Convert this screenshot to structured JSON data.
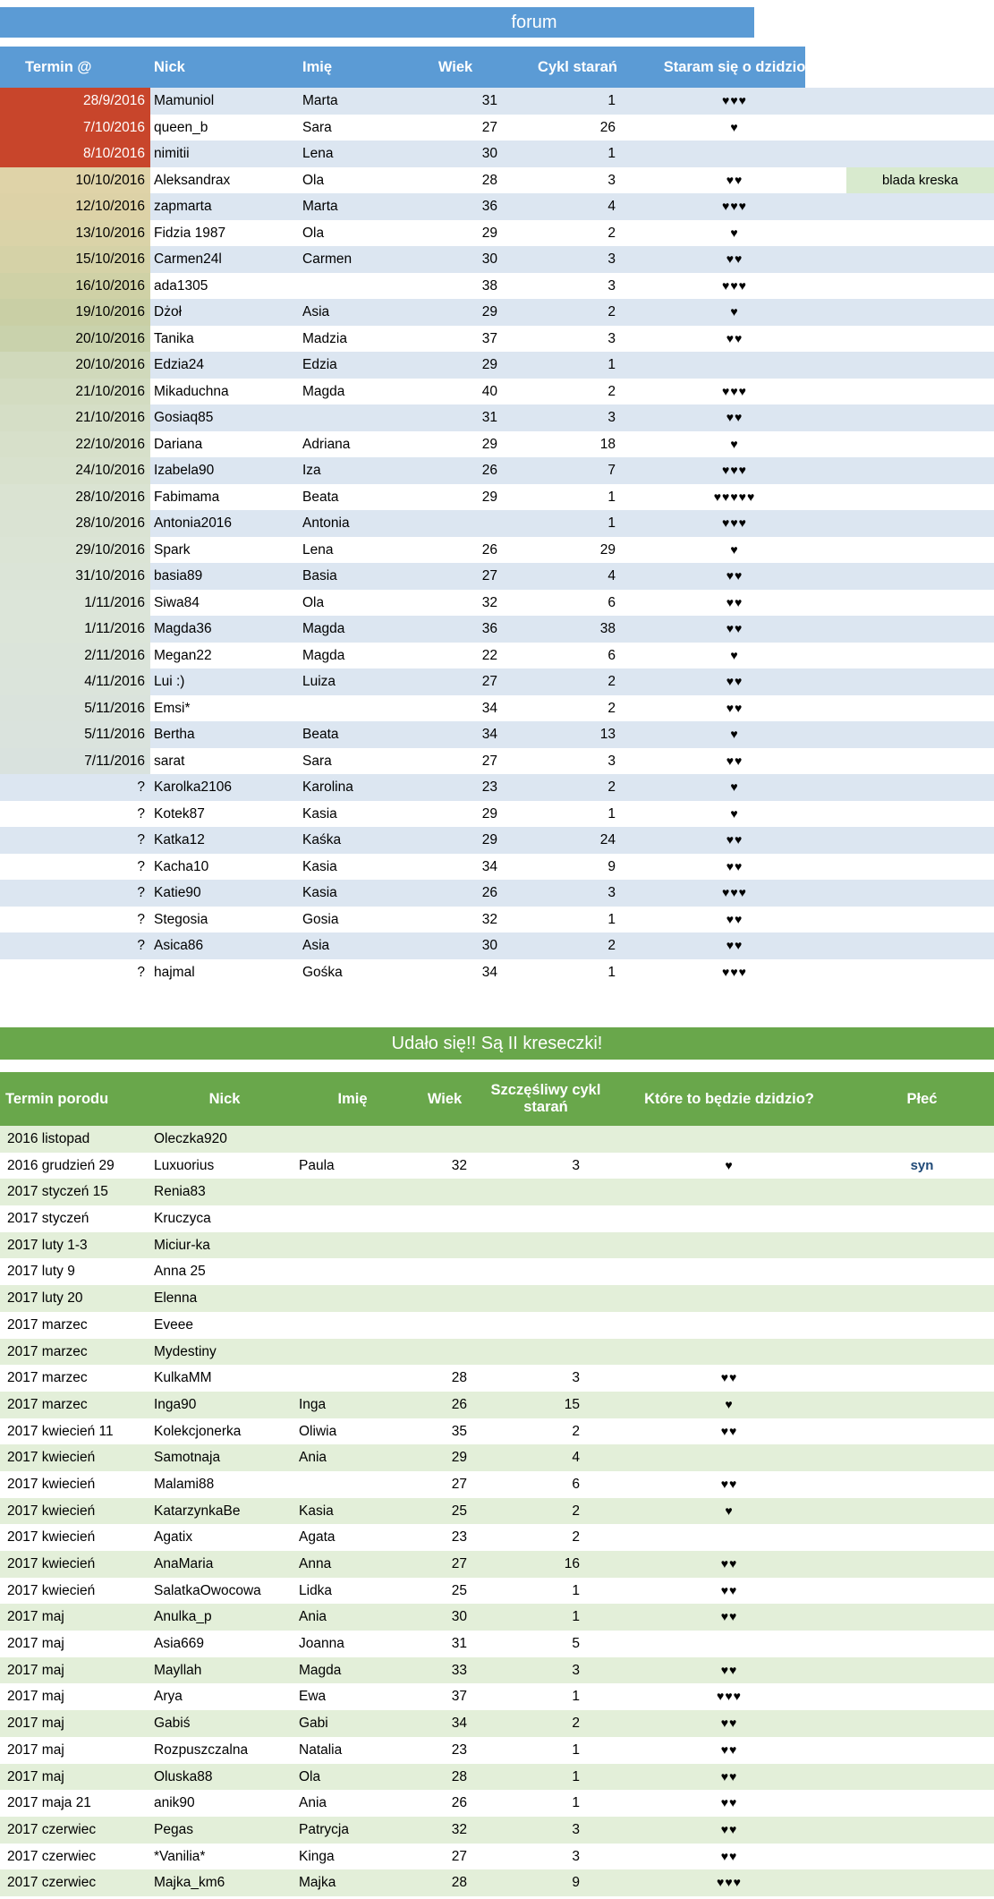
{
  "title": "forum",
  "banner": "Udało się!! Są II kreseczki!",
  "colors": {
    "header_blue": "#5B9BD5",
    "stripe_blue": "#DCE6F1",
    "banner_green": "#69A74B",
    "stripe_green": "#E3EFD9",
    "note_green": "#D8EACE",
    "overdue_red": "#C8452B",
    "syn_navy": "#1F4977"
  },
  "table1": {
    "headers": {
      "termin": "Termin @",
      "nick": "Nick",
      "imie": "Imię",
      "wiek": "Wiek",
      "cykl": "Cykl starań",
      "staram": "Staram się o dzidzio"
    },
    "rows": [
      {
        "date": "28/9/2016",
        "nick": "Mamuniol",
        "imie": "Marta",
        "wiek": "31",
        "cykl": "1",
        "hearts": 3,
        "note": "",
        "date_bg": "#C8452B",
        "date_fg": "#FFFFFF"
      },
      {
        "date": "7/10/2016",
        "nick": "queen_b",
        "imie": "Sara",
        "wiek": "27",
        "cykl": "26",
        "hearts": 1,
        "note": "",
        "date_bg": "#C8452B",
        "date_fg": "#FFFFFF"
      },
      {
        "date": "8/10/2016",
        "nick": "nimitii",
        "imie": "Lena",
        "wiek": "30",
        "cykl": "1",
        "hearts": 0,
        "note": "",
        "date_bg": "#C8452B",
        "date_fg": "#FFFFFF"
      },
      {
        "date": "10/10/2016",
        "nick": "Aleksandrax",
        "imie": "Ola",
        "wiek": "28",
        "cykl": "3",
        "hearts": 2,
        "note": "blada kreska",
        "date_bg": "#DFD3A8"
      },
      {
        "date": "12/10/2016",
        "nick": "zapmarta",
        "imie": "Marta",
        "wiek": "36",
        "cykl": "4",
        "hearts": 3,
        "note": "",
        "date_bg": "#DDD2A7"
      },
      {
        "date": "13/10/2016",
        "nick": "Fidzia 1987",
        "imie": "Ola",
        "wiek": "29",
        "cykl": "2",
        "hearts": 1,
        "note": "",
        "date_bg": "#DAD3A8"
      },
      {
        "date": "15/10/2016",
        "nick": "Carmen24l",
        "imie": "Carmen",
        "wiek": "30",
        "cykl": "3",
        "hearts": 2,
        "note": "",
        "date_bg": "#D5D2A7"
      },
      {
        "date": "16/10/2016",
        "nick": "ada1305",
        "imie": "",
        "wiek": "38",
        "cykl": "3",
        "hearts": 3,
        "note": "",
        "date_bg": "#CFD1A6"
      },
      {
        "date": "19/10/2016",
        "nick": "Dżoł",
        "imie": "Asia",
        "wiek": "29",
        "cykl": "2",
        "hearts": 1,
        "note": "",
        "date_bg": "#C9CFA5"
      },
      {
        "date": "20/10/2016",
        "nick": "Tanika",
        "imie": "Madzia",
        "wiek": "37",
        "cykl": "3",
        "hearts": 2,
        "note": "",
        "date_bg": "#C9D2AC"
      },
      {
        "date": "20/10/2016",
        "nick": "Edzia24",
        "imie": "Edzia",
        "wiek": "29",
        "cykl": "1",
        "hearts": 0,
        "note": "",
        "date_bg": "#D0D9BB"
      },
      {
        "date": "21/10/2016",
        "nick": "Mikaduchna",
        "imie": "Magda",
        "wiek": "40",
        "cykl": "2",
        "hearts": 3,
        "note": "",
        "date_bg": "#D3DCC1"
      },
      {
        "date": "21/10/2016",
        "nick": "Gosiaq85",
        "imie": "",
        "wiek": "31",
        "cykl": "3",
        "hearts": 2,
        "note": "",
        "date_bg": "#D5DEC6"
      },
      {
        "date": "22/10/2016",
        "nick": "Dariana",
        "imie": "Adriana",
        "wiek": "29",
        "cykl": "18",
        "hearts": 1,
        "note": "",
        "date_bg": "#D7E0CA"
      },
      {
        "date": "24/10/2016",
        "nick": "Izabela90",
        "imie": "Iza",
        "wiek": "26",
        "cykl": "7",
        "hearts": 3,
        "note": "",
        "date_bg": "#D8E1CD"
      },
      {
        "date": "28/10/2016",
        "nick": "Fabimama",
        "imie": "Beata",
        "wiek": "29",
        "cykl": "1",
        "hearts": 5,
        "note": "",
        "date_bg": "#DAE3D2"
      },
      {
        "date": "28/10/2016",
        "nick": "Antonia2016",
        "imie": "Antonia",
        "wiek": "",
        "cykl": "1",
        "hearts": 3,
        "note": "",
        "date_bg": "#DAE3D3"
      },
      {
        "date": "29/10/2016",
        "nick": "Spark",
        "imie": "Lena",
        "wiek": "26",
        "cykl": "29",
        "hearts": 1,
        "note": "",
        "date_bg": "#DBE4D5"
      },
      {
        "date": "31/10/2016",
        "nick": "basia89",
        "imie": "Basia",
        "wiek": "27",
        "cykl": "4",
        "hearts": 2,
        "note": "",
        "date_bg": "#DBE4D7"
      },
      {
        "date": "1/11/2016",
        "nick": "Siwa84",
        "imie": "Ola",
        "wiek": "32",
        "cykl": "6",
        "hearts": 2,
        "note": "",
        "date_bg": "#DCE5D9"
      },
      {
        "date": "1/11/2016",
        "nick": "Magda36",
        "imie": "Magda",
        "wiek": "36",
        "cykl": "38",
        "hearts": 2,
        "note": "",
        "date_bg": "#DCE5D9"
      },
      {
        "date": "2/11/2016",
        "nick": "Megan22",
        "imie": "Magda",
        "wiek": "22",
        "cykl": "6",
        "hearts": 1,
        "note": "",
        "date_bg": "#DBE4DA"
      },
      {
        "date": "4/11/2016",
        "nick": "Lui :)",
        "imie": "Luiza",
        "wiek": "27",
        "cykl": "2",
        "hearts": 2,
        "note": "",
        "date_bg": "#DBE4DB"
      },
      {
        "date": "5/11/2016",
        "nick": "Emsi*",
        "imie": "",
        "wiek": "34",
        "cykl": "2",
        "hearts": 2,
        "note": "",
        "date_bg": "#DAE3DC"
      },
      {
        "date": "5/11/2016",
        "nick": "Bertha",
        "imie": "Beata",
        "wiek": "34",
        "cykl": "13",
        "hearts": 1,
        "note": "",
        "date_bg": "#DAE3DD"
      },
      {
        "date": "7/11/2016",
        "nick": "sarat",
        "imie": "Sara",
        "wiek": "27",
        "cykl": "3",
        "hearts": 2,
        "note": "",
        "date_bg": "#D9E2DE"
      },
      {
        "date": "?",
        "nick": "Karolka2106",
        "imie": "Karolina",
        "wiek": "23",
        "cykl": "2",
        "hearts": 1,
        "note": ""
      },
      {
        "date": "?",
        "nick": "Kotek87",
        "imie": "Kasia",
        "wiek": "29",
        "cykl": "1",
        "hearts": 1,
        "note": ""
      },
      {
        "date": "?",
        "nick": "Katka12",
        "imie": "Kaśka",
        "wiek": "29",
        "cykl": "24",
        "hearts": 2,
        "note": ""
      },
      {
        "date": "?",
        "nick": "Kacha10",
        "imie": "Kasia",
        "wiek": "34",
        "cykl": "9",
        "hearts": 2,
        "note": ""
      },
      {
        "date": "?",
        "nick": "Katie90",
        "imie": "Kasia",
        "wiek": "26",
        "cykl": "3",
        "hearts": 3,
        "note": ""
      },
      {
        "date": "?",
        "nick": "Stegosia",
        "imie": "Gosia",
        "wiek": "32",
        "cykl": "1",
        "hearts": 2,
        "note": ""
      },
      {
        "date": "?",
        "nick": "Asica86",
        "imie": "Asia",
        "wiek": "30",
        "cykl": "2",
        "hearts": 2,
        "note": ""
      },
      {
        "date": "?",
        "nick": "hajmal",
        "imie": "Gośka",
        "wiek": "34",
        "cykl": "1",
        "hearts": 3,
        "note": ""
      }
    ]
  },
  "table2": {
    "headers": {
      "termin": "Termin porodu",
      "nick": "Nick",
      "imie": "Imię",
      "wiek": "Wiek",
      "cykl": "Szczęśliwy cykl starań",
      "dzidzio": "Które to będzie dzidzio?",
      "plec": "Płeć"
    },
    "rows": [
      {
        "termin": "2016 listopad",
        "nick": "Oleczka920",
        "imie": "",
        "wiek": "",
        "cykl": "",
        "hearts": 0,
        "plec": ""
      },
      {
        "termin": "2016 grudzień 29",
        "nick": "Luxuorius",
        "imie": "Paula",
        "wiek": "32",
        "cykl": "3",
        "hearts": 1,
        "plec": "syn"
      },
      {
        "termin": "2017 styczeń 15",
        "nick": "Renia83",
        "imie": "",
        "wiek": "",
        "cykl": "",
        "hearts": 0,
        "plec": ""
      },
      {
        "termin": "2017 styczeń",
        "nick": "Kruczyca",
        "imie": "",
        "wiek": "",
        "cykl": "",
        "hearts": 0,
        "plec": ""
      },
      {
        "termin": "2017 luty 1-3",
        "nick": "Miciur-ka",
        "imie": "",
        "wiek": "",
        "cykl": "",
        "hearts": 0,
        "plec": ""
      },
      {
        "termin": "2017 luty 9",
        "nick": "Anna 25",
        "imie": "",
        "wiek": "",
        "cykl": "",
        "hearts": 0,
        "plec": ""
      },
      {
        "termin": "2017 luty 20",
        "nick": "Elenna",
        "imie": "",
        "wiek": "",
        "cykl": "",
        "hearts": 0,
        "plec": ""
      },
      {
        "termin": "2017 marzec",
        "nick": "Eveee",
        "imie": "",
        "wiek": "",
        "cykl": "",
        "hearts": 0,
        "plec": ""
      },
      {
        "termin": "2017 marzec",
        "nick": "Mydestiny",
        "imie": "",
        "wiek": "",
        "cykl": "",
        "hearts": 0,
        "plec": ""
      },
      {
        "termin": "2017 marzec",
        "nick": "KulkaMM",
        "imie": "",
        "wiek": "28",
        "cykl": "3",
        "hearts": 2,
        "plec": ""
      },
      {
        "termin": "2017 marzec",
        "nick": "Inga90",
        "imie": "Inga",
        "wiek": "26",
        "cykl": "15",
        "hearts": 1,
        "plec": ""
      },
      {
        "termin": "2017 kwiecień 11",
        "nick": "Kolekcjonerka",
        "imie": "Oliwia",
        "wiek": "35",
        "cykl": "2",
        "hearts": 2,
        "plec": ""
      },
      {
        "termin": "2017 kwiecień",
        "nick": "Samotnaja",
        "imie": "Ania",
        "wiek": "29",
        "cykl": "4",
        "hearts": 0,
        "plec": ""
      },
      {
        "termin": "2017 kwiecień",
        "nick": "Malami88",
        "imie": "",
        "wiek": "27",
        "cykl": "6",
        "hearts": 2,
        "plec": ""
      },
      {
        "termin": "2017 kwiecień",
        "nick": "KatarzynkaBe",
        "imie": "Kasia",
        "wiek": "25",
        "cykl": "2",
        "hearts": 1,
        "plec": ""
      },
      {
        "termin": "2017 kwiecień",
        "nick": "Agatix",
        "imie": "Agata",
        "wiek": "23",
        "cykl": "2",
        "hearts": 0,
        "plec": ""
      },
      {
        "termin": "2017 kwiecień",
        "nick": "AnaMaria",
        "imie": "Anna",
        "wiek": "27",
        "cykl": "16",
        "hearts": 2,
        "plec": ""
      },
      {
        "termin": "2017 kwiecień",
        "nick": "SalatkaOwocowa",
        "imie": "Lidka",
        "wiek": "25",
        "cykl": "1",
        "hearts": 2,
        "plec": ""
      },
      {
        "termin": "2017 maj",
        "nick": "Anulka_p",
        "imie": "Ania",
        "wiek": "30",
        "cykl": "1",
        "hearts": 2,
        "plec": ""
      },
      {
        "termin": "2017 maj",
        "nick": "Asia669",
        "imie": "Joanna",
        "wiek": "31",
        "cykl": "5",
        "hearts": 0,
        "plec": ""
      },
      {
        "termin": "2017 maj",
        "nick": "Mayllah",
        "imie": "Magda",
        "wiek": "33",
        "cykl": "3",
        "hearts": 2,
        "plec": ""
      },
      {
        "termin": "2017 maj",
        "nick": "Arya",
        "imie": "Ewa",
        "wiek": "37",
        "cykl": "1",
        "hearts": 3,
        "plec": ""
      },
      {
        "termin": "2017 maj",
        "nick": "Gabiś",
        "imie": "Gabi",
        "wiek": "34",
        "cykl": "2",
        "hearts": 2,
        "plec": ""
      },
      {
        "termin": "2017 maj",
        "nick": "Rozpuszczalna",
        "imie": "Natalia",
        "wiek": "23",
        "cykl": "1",
        "hearts": 2,
        "plec": ""
      },
      {
        "termin": "2017 maj",
        "nick": "Oluska88",
        "imie": "Ola",
        "wiek": "28",
        "cykl": "1",
        "hearts": 2,
        "plec": ""
      },
      {
        "termin": "2017 maja 21",
        "nick": "anik90",
        "imie": "Ania",
        "wiek": "26",
        "cykl": "1",
        "hearts": 2,
        "plec": ""
      },
      {
        "termin": "2017 czerwiec",
        "nick": "Pegas",
        "imie": "Patrycja",
        "wiek": "32",
        "cykl": "3",
        "hearts": 2,
        "plec": ""
      },
      {
        "termin": "2017 czerwiec",
        "nick": "*Vanilia*",
        "imie": "Kinga",
        "wiek": "27",
        "cykl": "3",
        "hearts": 2,
        "plec": ""
      },
      {
        "termin": "2017 czerwiec",
        "nick": "Majka_km6",
        "imie": "Majka",
        "wiek": "28",
        "cykl": "9",
        "hearts": 3,
        "plec": ""
      }
    ]
  }
}
